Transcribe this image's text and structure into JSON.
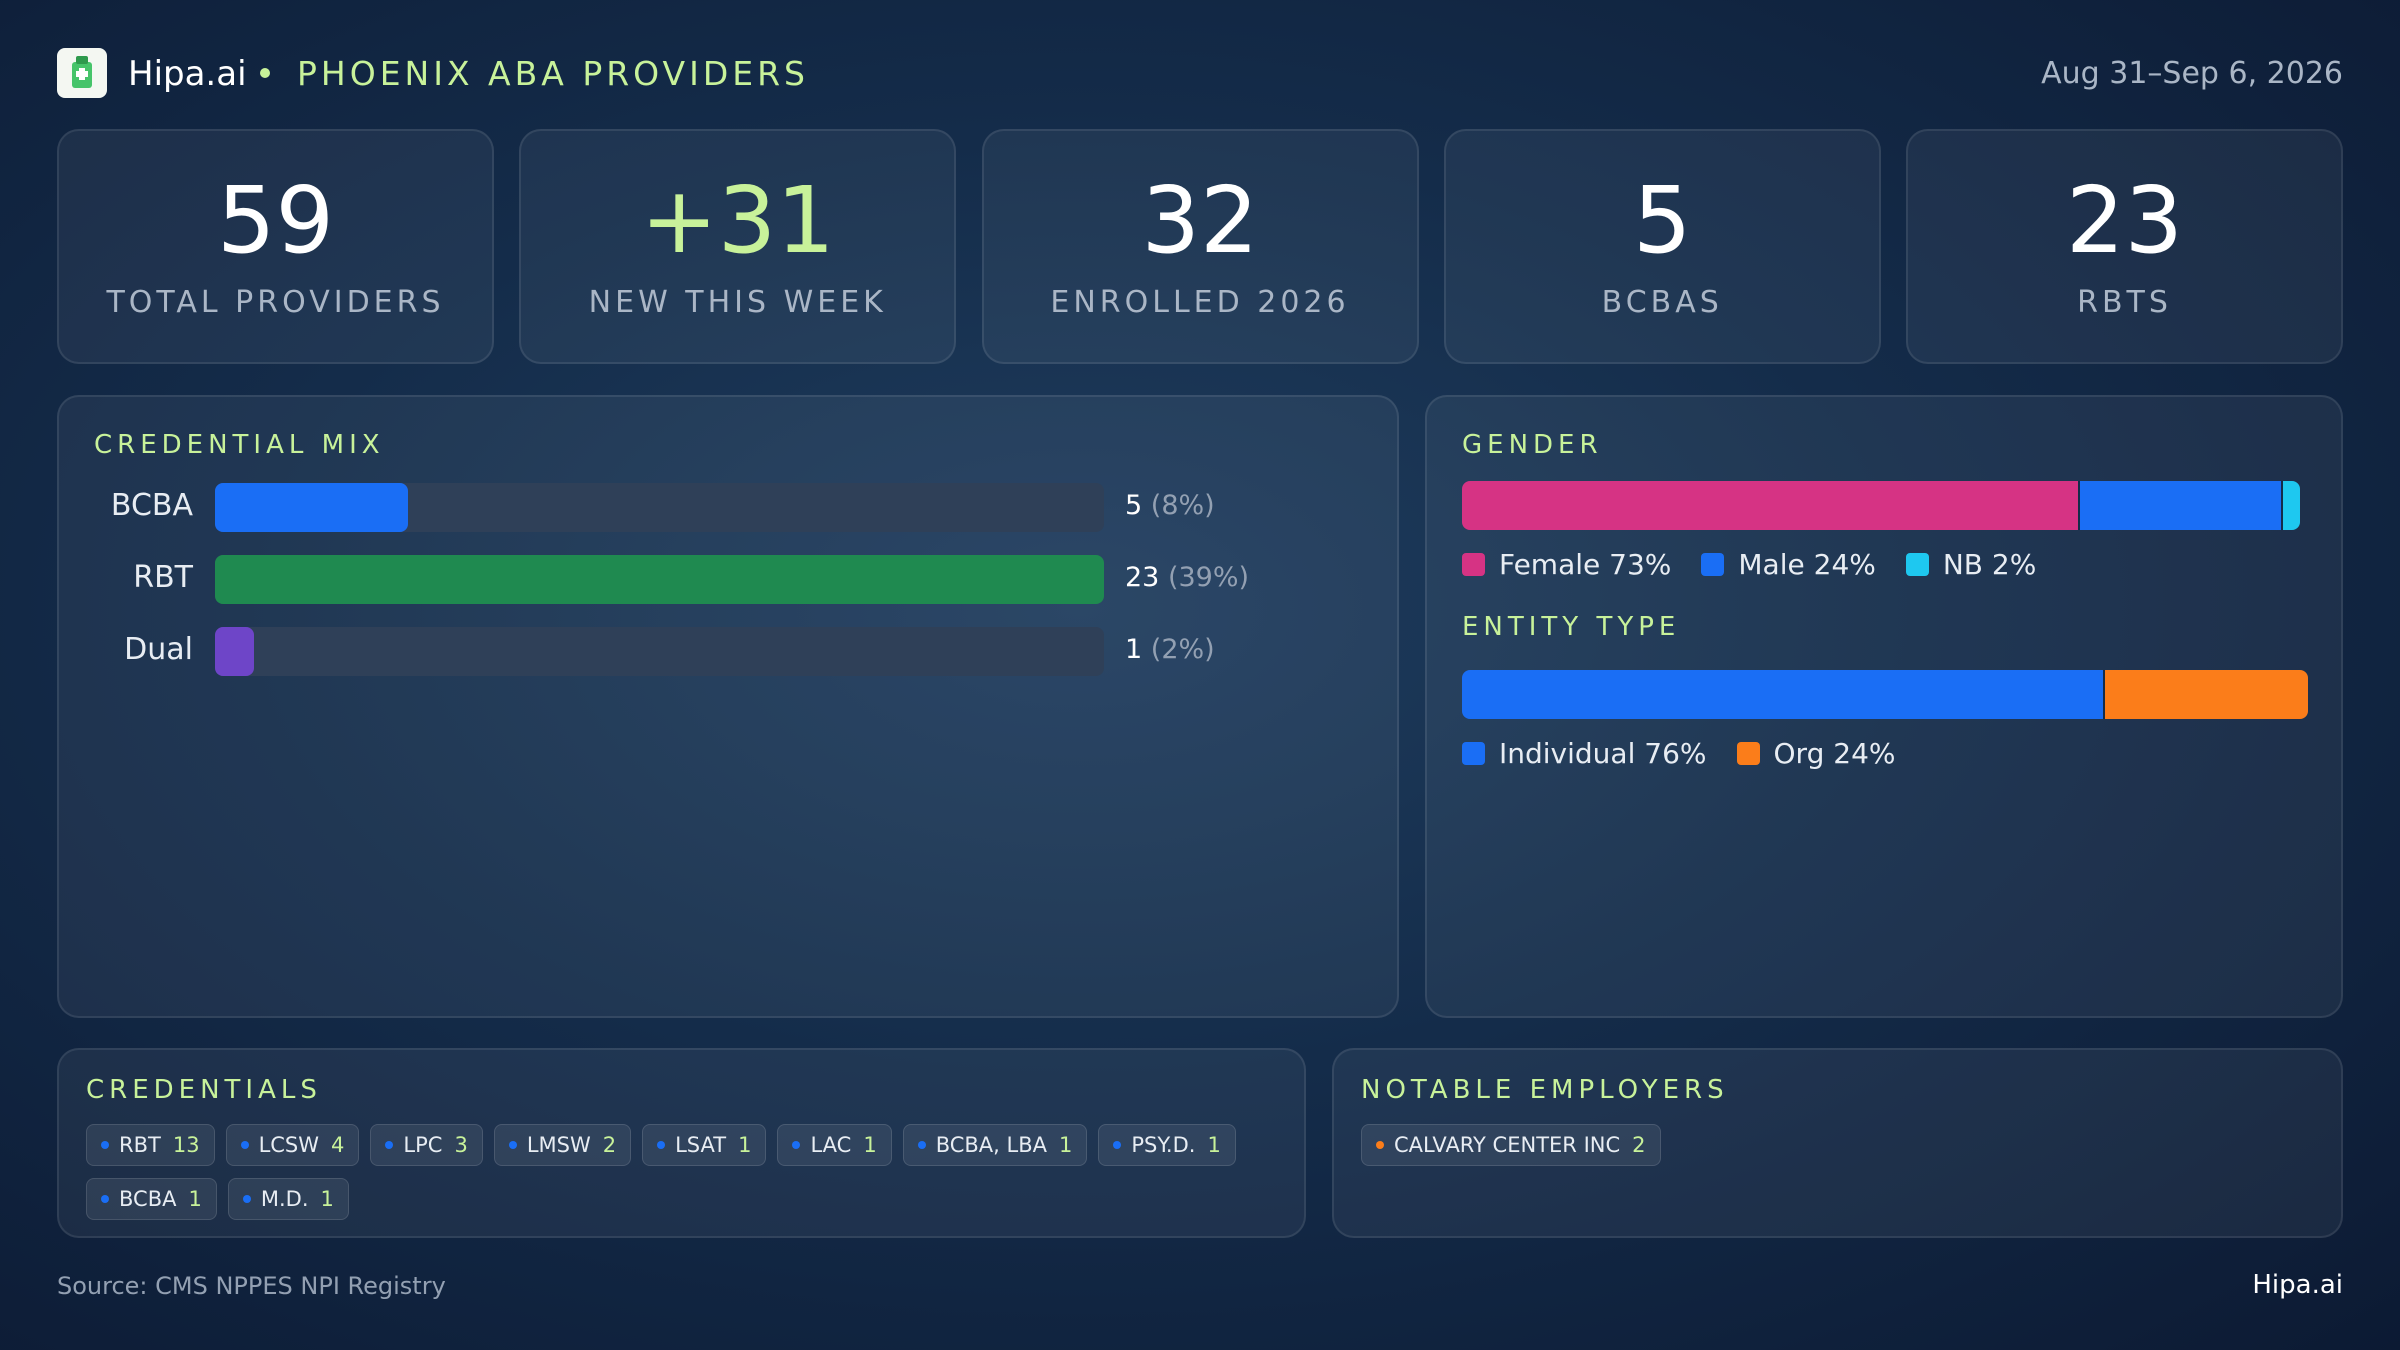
{
  "header": {
    "brand": "Hipa.ai",
    "title": "PHOENIX ABA PROVIDERS",
    "date_range": "Aug 31–Sep 6, 2026"
  },
  "kpis": [
    {
      "value": 59,
      "label": "TOTAL PROVIDERS"
    },
    {
      "value": "+31",
      "label": "NEW THIS WEEK"
    },
    {
      "value": 32,
      "label": "ENROLLED 2026"
    },
    {
      "value": 5,
      "label": "BCBAS"
    },
    {
      "value": 23,
      "label": "RBTS"
    }
  ],
  "credential_mix": {
    "title": "CREDENTIAL MIX",
    "rows": [
      {
        "name": "BCBA",
        "value": 5,
        "share_label": "(8%)",
        "color": "#1a6ef5"
      },
      {
        "name": "RBT",
        "value": 23,
        "share_label": "(39%)",
        "color": "#1f8a50"
      },
      {
        "name": "Dual",
        "value": 1,
        "share_label": "(2%)",
        "color": "#6e45c8"
      }
    ]
  },
  "gender": {
    "title": "GENDER",
    "segments": [
      {
        "name": "Female",
        "value": 73,
        "value_label": "73%",
        "color": "#d63384"
      },
      {
        "name": "Male",
        "value": 24,
        "value_label": "24%",
        "color": "#1a6ef5"
      },
      {
        "name": "NB",
        "value": 2,
        "value_label": "2%",
        "color": "#1ec8f0"
      }
    ]
  },
  "entity_type": {
    "title": "ENTITY TYPE",
    "segments": [
      {
        "name": "Individual",
        "value": 76,
        "value_label": "76%",
        "color": "#1a6ef5"
      },
      {
        "name": "Org",
        "value": 24,
        "value_label": "24%",
        "color": "#fb7d1a"
      }
    ]
  },
  "credentials": {
    "title": "CREDENTIALS",
    "items": [
      {
        "name": "RBT",
        "count": 13
      },
      {
        "name": "LCSW",
        "count": 4
      },
      {
        "name": "LPC",
        "count": 3
      },
      {
        "name": "LMSW",
        "count": 2
      },
      {
        "name": "LSAT",
        "count": 1
      },
      {
        "name": "LAC",
        "count": 1
      },
      {
        "name": "BCBA, LBA",
        "count": 1
      },
      {
        "name": "PSY.D.",
        "count": 1
      },
      {
        "name": "BCBA",
        "count": 1
      },
      {
        "name": "M.D.",
        "count": 1
      }
    ]
  },
  "employers": {
    "title": "NOTABLE EMPLOYERS",
    "items": [
      {
        "name": "CALVARY CENTER INC",
        "count": 2
      }
    ]
  },
  "footer": {
    "source": "Source: CMS NPPES NPI Registry",
    "brand": "Hipa.ai"
  }
}
